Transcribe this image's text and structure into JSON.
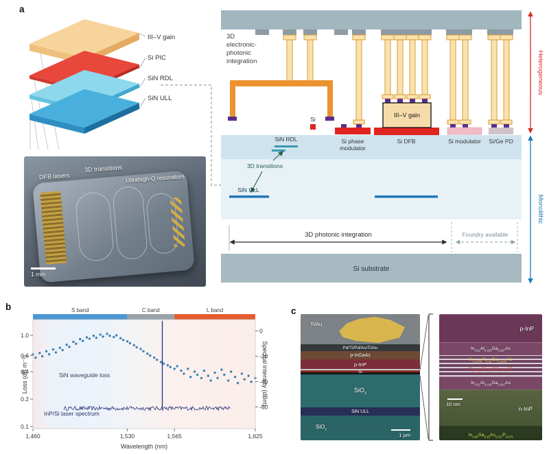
{
  "figure": {
    "panel_labels": {
      "a": "a",
      "b": "b",
      "c": "c"
    }
  },
  "colors": {
    "heterogeneous_arrow": "#d42a20",
    "monolithic_arrow": "#1a7ab8",
    "si_red": "#e02420",
    "iii_v_tan": "#f6dcab",
    "sin_ull_blue": "#2277b5"
  },
  "panel_a": {
    "stack": {
      "labels": [
        "III–V gain",
        "Si PIC",
        "SiN RDL",
        "SiN ULL"
      ]
    },
    "chip": {
      "dfb_label": "DFB lasers",
      "transitions_label": "3D transitions",
      "resonators_label": "Ultrahigh-Q resonators",
      "scale_label": "1 mm"
    },
    "schematic": {
      "integration_lines": [
        "3D",
        "electronic-",
        "photonic",
        "integration"
      ],
      "si_label": "Si",
      "sin_rdl_label": "SiN RDL",
      "si_phase_lines": [
        "Si phase",
        "modulator"
      ],
      "si_dfb_label": "Si DFB",
      "iii_v_gain_label": "III–V gain",
      "si_modulator_label": "Si modulator",
      "si_ge_pd_label": "Si/Ge PD",
      "transitions_label": "3D transitions",
      "sin_ull_label": "SiN ULL",
      "photonic_integration_label": "3D photonic integration",
      "foundry_label": "Foundry available",
      "substrate_label": "Si substrate",
      "heterogeneous_label": "Heterogeneous",
      "monolithic_label": "Monolithic"
    }
  },
  "chart_data": {
    "type": "scatter+spectrum",
    "xlabel": "Wavelength (nm)",
    "ylabel_left": "Loss (dB m⁻¹)",
    "ylabel_right": "Spectral intensity (dBm)",
    "xlim": [
      1460,
      1625
    ],
    "x_ticks": [
      1460,
      1530,
      1565,
      1625
    ],
    "x_tick_labels": [
      "1,460",
      "1,530",
      "1,565",
      "1,625"
    ],
    "ylim_left_log": [
      0.095,
      1.49
    ],
    "yticks_left": [
      1.0,
      0.6,
      0.4,
      0.2,
      0.1
    ],
    "ylim_right": [
      9,
      -77
    ],
    "yticks_right": [
      0,
      -20,
      -40,
      -60
    ],
    "bands": [
      {
        "label": "S band",
        "start": 1460,
        "end": 1530,
        "color": "#4e97d1"
      },
      {
        "label": "C band",
        "start": 1530,
        "end": 1565,
        "color": "#9aa2a8"
      },
      {
        "label": "L band",
        "start": 1565,
        "end": 1625,
        "color": "#e65c2e"
      }
    ],
    "series": [
      {
        "name": "SiN waveguide loss",
        "type": "scatter",
        "axis": "left",
        "color": "#2f79ae",
        "points": [
          [
            1460,
            0.62
          ],
          [
            1462,
            0.57
          ],
          [
            1465,
            0.64
          ],
          [
            1467,
            0.59
          ],
          [
            1470,
            0.67
          ],
          [
            1472,
            0.62
          ],
          [
            1475,
            0.7
          ],
          [
            1477,
            0.65
          ],
          [
            1480,
            0.73
          ],
          [
            1482,
            0.69
          ],
          [
            1485,
            0.79
          ],
          [
            1487,
            0.75
          ],
          [
            1490,
            0.85
          ],
          [
            1492,
            0.81
          ],
          [
            1495,
            0.91
          ],
          [
            1497,
            0.87
          ],
          [
            1500,
            0.95
          ],
          [
            1502,
            0.92
          ],
          [
            1505,
            0.99
          ],
          [
            1507,
            0.94
          ],
          [
            1510,
            1.02
          ],
          [
            1512,
            0.97
          ],
          [
            1515,
            1.04
          ],
          [
            1517,
            0.99
          ],
          [
            1520,
            0.96
          ],
          [
            1522,
            1.0
          ],
          [
            1525,
            0.93
          ],
          [
            1527,
            0.89
          ],
          [
            1530,
            0.86
          ],
          [
            1532,
            0.82
          ],
          [
            1535,
            0.78
          ],
          [
            1537,
            0.74
          ],
          [
            1540,
            0.71
          ],
          [
            1542,
            0.67
          ],
          [
            1545,
            0.63
          ],
          [
            1547,
            0.6
          ],
          [
            1550,
            0.57
          ],
          [
            1552,
            0.54
          ],
          [
            1555,
            0.51
          ],
          [
            1557,
            0.49
          ],
          [
            1560,
            0.47
          ],
          [
            1562,
            0.45
          ],
          [
            1565,
            0.43
          ],
          [
            1567,
            0.46
          ],
          [
            1570,
            0.41
          ],
          [
            1572,
            0.38
          ],
          [
            1575,
            0.43
          ],
          [
            1577,
            0.35
          ],
          [
            1580,
            0.4
          ],
          [
            1582,
            0.37
          ],
          [
            1585,
            0.34
          ],
          [
            1587,
            0.41
          ],
          [
            1590,
            0.36
          ],
          [
            1592,
            0.32
          ],
          [
            1595,
            0.39
          ],
          [
            1597,
            0.34
          ],
          [
            1600,
            0.42
          ],
          [
            1602,
            0.37
          ],
          [
            1605,
            0.32
          ],
          [
            1607,
            0.4
          ],
          [
            1610,
            0.35
          ],
          [
            1612,
            0.3
          ],
          [
            1615,
            0.38
          ],
          [
            1617,
            0.33
          ],
          [
            1620,
            0.36
          ],
          [
            1622,
            0.31
          ],
          [
            1625,
            0.34
          ]
        ]
      },
      {
        "name": "InP/Si laser spectrum",
        "type": "spectrum",
        "axis": "right",
        "color": "#22307a",
        "floor_dbm": -61,
        "floor_range_nm": [
          1483,
          1607
        ],
        "peak_nm": 1556,
        "peak_dbm": 8
      }
    ]
  },
  "panel_c": {
    "sem": {
      "ti_au": "Ti/Au",
      "metal_stack": "Pd/Ti/Pd/Au/Ti/Au",
      "p_ingaas": "p-InGaAs",
      "p_inp": "p-InP",
      "si": "Si",
      "sio2_upper": "SiO2",
      "sin_ull": "SiN ULL",
      "sio2_lower": "SiO2",
      "scale_label": "1 µm"
    },
    "epi": {
      "p_inp": "p-InP",
      "sch_upper": "In0.52Al0.183Ga0.287As",
      "qw": "In0.6758Al0.06Ga0.2642As",
      "barrier": "In0.4411Al0.085Ga0.4739As",
      "sch_lower": "In0.52Al0.183Ga0.287As",
      "scale_label": "10 nm",
      "n_inp": "n-InP",
      "contact": "In0.85Ga0.15As0.327P0.673"
    }
  }
}
